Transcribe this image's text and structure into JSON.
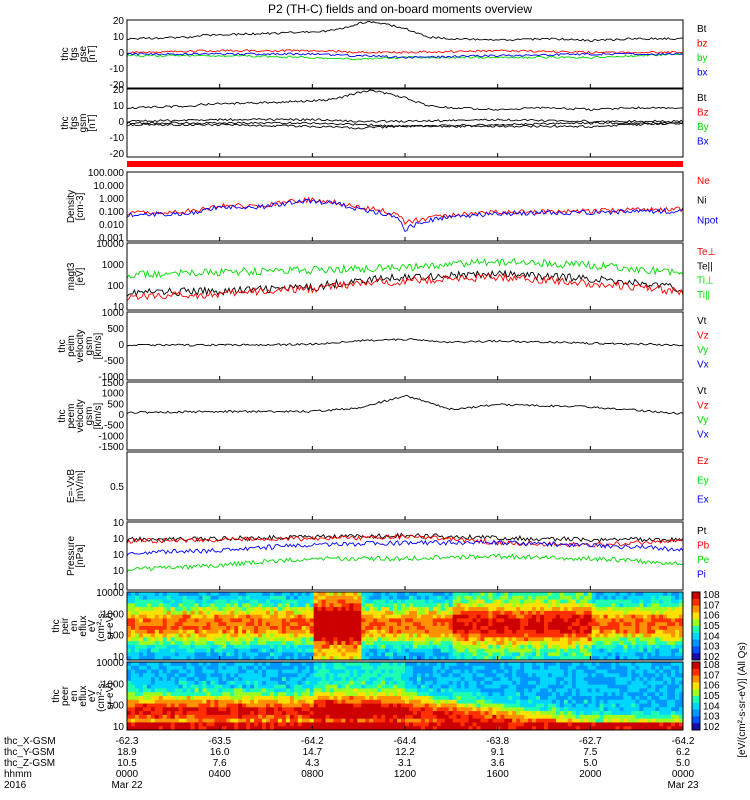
{
  "title": "P2 (TH-C) fields and on-board moments overview",
  "colors": {
    "black": "#000000",
    "red": "#ff0000",
    "green": "#00dd00",
    "blue": "#0000ff"
  },
  "panels": [
    {
      "id": "fgs-gse",
      "ylabel": [
        "thc",
        "fgs",
        "gse",
        "[nT]"
      ],
      "ytick_labels": [
        "20",
        "10",
        "0",
        "-10",
        "-20"
      ],
      "yrange": [
        -20,
        20
      ],
      "scale": "linear",
      "legend": [
        {
          "text": "Bt",
          "color": "black"
        },
        {
          "text": "bz",
          "color": "red"
        },
        {
          "text": "by",
          "color": "green"
        },
        {
          "text": "bx",
          "color": "blue"
        }
      ]
    },
    {
      "id": "fgs-gsm",
      "ylabel": [
        "thc",
        "fgs",
        "gsm",
        "[nT]"
      ],
      "ytick_labels": [
        "20",
        "10",
        "0",
        "-10",
        "-20"
      ],
      "yrange": [
        -20,
        20
      ],
      "scale": "linear",
      "legend": [
        {
          "text": "Bt",
          "color": "black"
        },
        {
          "text": "Bz",
          "color": "red"
        },
        {
          "text": "By",
          "color": "green"
        },
        {
          "text": "Bx",
          "color": "blue"
        }
      ]
    },
    {
      "id": "density",
      "ylabel": [
        "Density",
        "[cm-3]"
      ],
      "ytick_labels": [
        "100.000",
        "10.000",
        "1.000",
        "0.100",
        "0.010",
        "0.001"
      ],
      "yrange": [
        0.001,
        100
      ],
      "scale": "log",
      "legend": [
        {
          "text": "Ne",
          "color": "red"
        },
        {
          "text": "Ni",
          "color": "black"
        },
        {
          "text": "Npot",
          "color": "blue"
        }
      ]
    },
    {
      "id": "temperature",
      "ylabel": [
        "magt3",
        "[eV]"
      ],
      "ytick_labels": [
        "10000",
        "1000",
        "100",
        "10"
      ],
      "yrange": [
        10,
        10000
      ],
      "scale": "log",
      "legend": [
        {
          "text": "Te⊥",
          "color": "red"
        },
        {
          "text": "Te||",
          "color": "black"
        },
        {
          "text": "Ti⊥",
          "color": "green"
        },
        {
          "text": "Ti||",
          "color": "green"
        }
      ]
    },
    {
      "id": "peim-velocity",
      "ylabel": [
        "thc",
        "peim",
        "velocity",
        "gsm",
        "[km/s]"
      ],
      "ytick_labels": [
        "1000",
        "500",
        "0",
        "-500",
        "-1000"
      ],
      "yrange": [
        -1000,
        1000
      ],
      "scale": "linear",
      "legend": [
        {
          "text": "Vt",
          "color": "black"
        },
        {
          "text": "Vz",
          "color": "red"
        },
        {
          "text": "Vy",
          "color": "green"
        },
        {
          "text": "Vx",
          "color": "blue"
        }
      ]
    },
    {
      "id": "peem-velocity",
      "ylabel": [
        "thc",
        "peem",
        "velocity",
        "gsm",
        "[km/s]"
      ],
      "ytick_labels": [
        "1500",
        "1000",
        "500",
        "0",
        "-500",
        "-1000",
        "-1500"
      ],
      "yrange": [
        -1500,
        1500
      ],
      "scale": "linear",
      "legend": [
        {
          "text": "Vt",
          "color": "black"
        },
        {
          "text": "Vz",
          "color": "red"
        },
        {
          "text": "Vy",
          "color": "green"
        },
        {
          "text": "Vx",
          "color": "blue"
        }
      ]
    },
    {
      "id": "e-field",
      "ylabel": [
        "E=-VxB",
        "[mV/m]"
      ],
      "ytick_labels": [
        "0.5"
      ],
      "yrange": [
        0,
        1
      ],
      "scale": "linear",
      "legend": [
        {
          "text": "Ez",
          "color": "red"
        },
        {
          "text": "Ey",
          "color": "green"
        },
        {
          "text": "Ex",
          "color": "blue"
        }
      ]
    },
    {
      "id": "pressure",
      "ylabel": [
        "Pressure",
        "[nPa]"
      ],
      "ytick_labels": [
        "10",
        "10",
        "10",
        "10",
        "10"
      ],
      "yrange": [
        1e-05,
        1
      ],
      "scale": "log",
      "legend": [
        {
          "text": "Pt",
          "color": "black"
        },
        {
          "text": "Pb",
          "color": "red"
        },
        {
          "text": "Pe",
          "color": "green"
        },
        {
          "text": "Pi",
          "color": "blue"
        }
      ]
    },
    {
      "id": "peir-spec",
      "ylabel": [
        "thc",
        "peir",
        "en",
        "eflux",
        "eV",
        "(cm²-s-",
        "sr-eV)"
      ],
      "ytick_labels": [
        "10000",
        "1000",
        "100",
        "10"
      ],
      "yrange": [
        10,
        10000
      ],
      "scale": "log"
    },
    {
      "id": "peer-spec",
      "ylabel": [
        "thc",
        "peer",
        "en",
        "eflux",
        "eV",
        "(cm²-s-",
        "sr-eV)"
      ],
      "ytick_labels": [
        "10000",
        "1000",
        "100",
        "10"
      ],
      "yrange": [
        10,
        10000
      ],
      "scale": "log"
    }
  ],
  "colorbar": {
    "label": "[eV/(cm²-s-sr-eV)] (All Qs)",
    "tick_labels": [
      "10^8",
      "10^7",
      "10^6",
      "10^5",
      "10^4",
      "10^3",
      "10^2"
    ],
    "range_exponent": [
      2,
      8
    ]
  },
  "xaxis": {
    "rows": [
      {
        "label": "thc_X-GSM",
        "values": [
          "-62.3",
          "-63.5",
          "-64.2",
          "-64.4",
          "-63.8",
          "-62.7",
          "-64.2"
        ]
      },
      {
        "label": "thc_Y-GSM",
        "values": [
          "18.9",
          "16.0",
          "14.7",
          "12.2",
          "9.1",
          "7.5",
          "6.2"
        ]
      },
      {
        "label": "thc_Z-GSM",
        "values": [
          "10.5",
          "7.6",
          "4.3",
          "3.1",
          "3.6",
          "5.0",
          "5.0"
        ]
      },
      {
        "label": "hhmm",
        "values": [
          "0000",
          "0400",
          "0800",
          "1200",
          "1600",
          "2000",
          "0000"
        ]
      },
      {
        "label": "2016",
        "values": [
          "Mar 22",
          "",
          "",
          "",
          "",
          "",
          "Mar 23"
        ]
      }
    ],
    "range_hours": [
      0,
      24
    ]
  },
  "chart_data": {
    "type": "line",
    "title": "P2 (TH-C) fields and on-board moments overview",
    "x_range": [
      "2016-03-22 00:00",
      "2016-03-23 00:00"
    ],
    "x_ticks": [
      "0000",
      "0400",
      "0800",
      "1200",
      "1600",
      "2000",
      "0000"
    ],
    "panels": [
      {
        "name": "fgs gse",
        "units": "nT",
        "ylim": [
          -20,
          20
        ],
        "series": [
          {
            "name": "Bt",
            "x_hours": [
              0,
              3,
              3.2,
              6,
              8,
              9,
              10,
              10.5,
              11,
              12,
              13,
              14,
              16,
              18,
              20,
              22,
              24
            ],
            "values": [
              9,
              10,
              11,
              12,
              13,
              14,
              18,
              19,
              18,
              15,
              10,
              9,
              8,
              9,
              8,
              9,
              9
            ]
          },
          {
            "name": "bz",
            "x_hours": [
              0,
              4,
              8,
              10,
              12,
              16,
              20,
              24
            ],
            "values": [
              1,
              2,
              2,
              1,
              1,
              2,
              1,
              1
            ]
          },
          {
            "name": "by",
            "x_hours": [
              0,
              4,
              8,
              10,
              12,
              16,
              20,
              24
            ],
            "values": [
              -1,
              -1,
              -2,
              -3,
              -2,
              -2,
              -2,
              0
            ]
          },
          {
            "name": "bx",
            "x_hours": [
              0,
              4,
              8,
              10,
              12,
              16,
              20,
              24
            ],
            "values": [
              0,
              0,
              0,
              -1,
              -2,
              -1,
              0,
              0
            ]
          }
        ]
      },
      {
        "name": "fgs gsm",
        "units": "nT",
        "ylim": [
          -20,
          20
        ],
        "series": [
          {
            "name": "Bx",
            "x_hours": [
              0,
              4,
              8,
              10,
              12,
              16,
              20,
              24
            ],
            "values": [
              9,
              9,
              10,
              12,
              8,
              5,
              4,
              5
            ]
          },
          {
            "name": "Bz",
            "x_hours": [
              0,
              4,
              8,
              10,
              12,
              16,
              20,
              24
            ],
            "values": [
              -1,
              -2,
              -1,
              -1,
              -2,
              -1,
              -1,
              -1
            ]
          }
        ]
      },
      {
        "name": "Density",
        "units": "cm-3",
        "scale": "log",
        "ylim": [
          0.001,
          100
        ],
        "series": [
          {
            "name": "Ne",
            "x_hours": [
              0,
              3,
              4,
              6,
              8,
              10,
              12,
              16,
              20,
              24
            ],
            "values": [
              0.1,
              0.15,
              0.35,
              0.35,
              1.0,
              0.3,
              0.02,
              0.12,
              0.15,
              0.2
            ]
          },
          {
            "name": "Npot",
            "x_hours": [
              0,
              3,
              4,
              6,
              8,
              10,
              12,
              16,
              20,
              24
            ],
            "values": [
              0.08,
              0.1,
              0.3,
              0.3,
              0.8,
              0.2,
              0.005,
              0.1,
              0.12,
              0.15
            ]
          }
        ]
      },
      {
        "name": "magt3",
        "units": "eV",
        "scale": "log",
        "ylim": [
          10,
          10000
        ],
        "series": [
          {
            "name": "Ti⊥",
            "x_hours": [
              0,
              4,
              8,
              12,
              16,
              20,
              24
            ],
            "values": [
              400,
              500,
              600,
              800,
              1500,
              1000,
              400
            ]
          },
          {
            "name": "Te||",
            "x_hours": [
              0,
              4,
              8,
              12,
              16,
              20,
              24
            ],
            "values": [
              60,
              70,
              100,
              300,
              400,
              250,
              80
            ]
          },
          {
            "name": "Te⊥",
            "x_hours": [
              0,
              4,
              8,
              12,
              16,
              20,
              24
            ],
            "values": [
              40,
              50,
              90,
              200,
              300,
              150,
              60
            ]
          }
        ]
      },
      {
        "name": "peim velocity",
        "units": "km/s",
        "ylim": [
          -1000,
          1000
        ],
        "series": [
          {
            "name": "Vt",
            "x_hours": [
              0,
              4,
              8,
              10,
              12,
              14,
              16,
              20,
              24
            ],
            "values": [
              20,
              30,
              50,
              150,
              200,
              100,
              150,
              80,
              30
            ]
          }
        ]
      },
      {
        "name": "peem velocity",
        "units": "km/s",
        "ylim": [
          -1500,
          1500
        ],
        "series": [
          {
            "name": "Vt",
            "x_hours": [
              0,
              4,
              8,
              10,
              12,
              14,
              16,
              20,
              24
            ],
            "values": [
              150,
              200,
              200,
              350,
              900,
              300,
              500,
              400,
              100
            ]
          }
        ]
      },
      {
        "name": "Pressure",
        "units": "nPa",
        "scale": "log",
        "ylim": [
          1e-05,
          1
        ],
        "series": [
          {
            "name": "Pt",
            "x_hours": [
              0,
              4,
              8,
              12,
              16,
              20,
              24
            ],
            "values": [
              0.05,
              0.06,
              0.08,
              0.1,
              0.07,
              0.05,
              0.05
            ]
          },
          {
            "name": "Pb",
            "x_hours": [
              0,
              4,
              8,
              12,
              16,
              20,
              24
            ],
            "values": [
              0.04,
              0.05,
              0.06,
              0.08,
              0.03,
              0.02,
              0.04
            ]
          },
          {
            "name": "Pe",
            "x_hours": [
              0,
              4,
              8,
              12,
              16,
              20,
              24
            ],
            "values": [
              0.0003,
              0.0006,
              0.002,
              0.002,
              0.003,
              0.002,
              0.0008
            ]
          },
          {
            "name": "Pi",
            "x_hours": [
              0,
              4,
              8,
              12,
              16,
              20,
              24
            ],
            "values": [
              0.005,
              0.008,
              0.02,
              0.03,
              0.03,
              0.02,
              0.008
            ]
          }
        ]
      }
    ]
  }
}
